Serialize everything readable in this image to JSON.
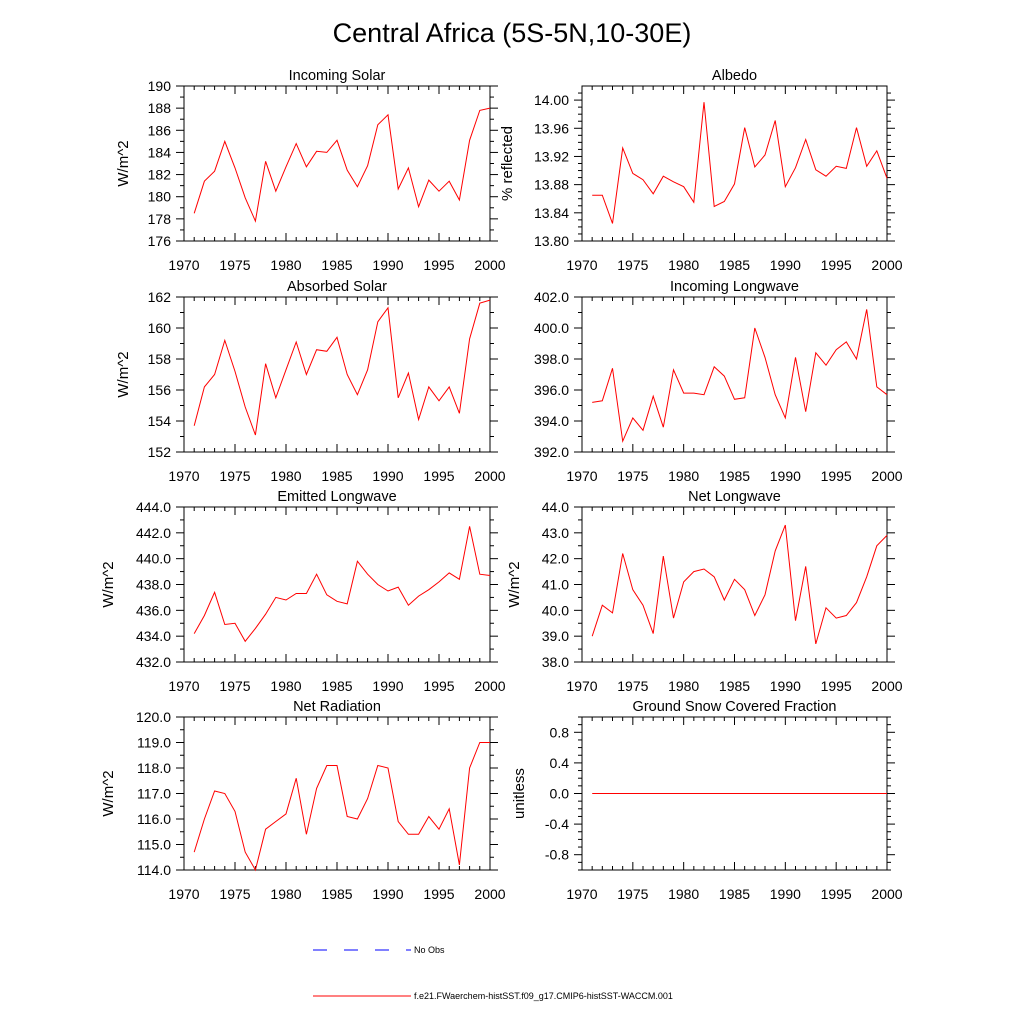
{
  "title": "Central Africa (5S-5N,10-30E)",
  "colors": {
    "model_line": "#ff0000",
    "obs_line": "#0000ff",
    "axis": "#000000"
  },
  "legend": {
    "obs_label": "No Obs",
    "model_label": "f.e21.FWaerchem-histSST.f09_g17.CMIP6-histSST-WACCM.001"
  },
  "chart_data": [
    {
      "type": "line",
      "title": "Incoming Solar",
      "ylabel": "W/m^2",
      "xlim": [
        1970,
        2000
      ],
      "ylim": [
        176,
        190
      ],
      "xticks": [
        1970,
        1975,
        1980,
        1985,
        1990,
        1995,
        2000
      ],
      "yticks": [
        176,
        178,
        180,
        182,
        184,
        186,
        188,
        190
      ],
      "ytick_labels": [
        "176",
        "178",
        "180",
        "182",
        "184",
        "186",
        "188",
        "190"
      ],
      "yminor": [
        177,
        179,
        181,
        183,
        185,
        187,
        189
      ],
      "x": [
        1971,
        1972,
        1973,
        1974,
        1975,
        1976,
        1977,
        1978,
        1979,
        1980,
        1981,
        1982,
        1983,
        1984,
        1985,
        1986,
        1987,
        1988,
        1989,
        1990,
        1991,
        1992,
        1993,
        1994,
        1995,
        1996,
        1997,
        1998,
        1999,
        2000
      ],
      "values": [
        178.5,
        181.4,
        182.3,
        185.0,
        182.6,
        179.9,
        177.8,
        183.2,
        180.5,
        182.7,
        184.8,
        182.7,
        184.1,
        184.0,
        185.1,
        182.4,
        180.9,
        182.8,
        186.5,
        187.4,
        180.7,
        182.6,
        179.1,
        181.5,
        180.5,
        181.4,
        179.7,
        185.1,
        187.8,
        188.0
      ]
    },
    {
      "type": "line",
      "title": "Albedo",
      "ylabel": "% reflected",
      "xlim": [
        1970,
        2000
      ],
      "ylim": [
        13.8,
        14.02
      ],
      "xticks": [
        1970,
        1975,
        1980,
        1985,
        1990,
        1995,
        2000
      ],
      "yticks": [
        13.8,
        13.84,
        13.88,
        13.92,
        13.96,
        14.0
      ],
      "ytick_labels": [
        "13.80",
        "13.84",
        "13.88",
        "13.92",
        "13.96",
        "14.00"
      ],
      "yminor": [
        13.81,
        13.82,
        13.83,
        13.85,
        13.86,
        13.87,
        13.89,
        13.9,
        13.91,
        13.93,
        13.94,
        13.95,
        13.97,
        13.98,
        13.99,
        14.01
      ],
      "x": [
        1971,
        1972,
        1973,
        1974,
        1975,
        1976,
        1977,
        1978,
        1979,
        1980,
        1981,
        1982,
        1983,
        1984,
        1985,
        1986,
        1987,
        1988,
        1989,
        1990,
        1991,
        1992,
        1993,
        1994,
        1995,
        1996,
        1997,
        1998,
        1999,
        2000
      ],
      "values": [
        13.865,
        13.865,
        13.825,
        13.932,
        13.896,
        13.887,
        13.867,
        13.892,
        13.884,
        13.877,
        13.855,
        13.997,
        13.849,
        13.856,
        13.881,
        13.961,
        13.905,
        13.922,
        13.971,
        13.877,
        13.904,
        13.944,
        13.901,
        13.892,
        13.906,
        13.903,
        13.961,
        13.906,
        13.928,
        13.889
      ]
    },
    {
      "type": "line",
      "title": "Absorbed Solar",
      "ylabel": "W/m^2",
      "xlim": [
        1970,
        2000
      ],
      "ylim": [
        152,
        162
      ],
      "xticks": [
        1970,
        1975,
        1980,
        1985,
        1990,
        1995,
        2000
      ],
      "yticks": [
        152,
        154,
        156,
        158,
        160,
        162
      ],
      "ytick_labels": [
        "152",
        "154",
        "156",
        "158",
        "160",
        "162"
      ],
      "yminor": [
        153,
        155,
        157,
        159,
        161
      ],
      "x": [
        1971,
        1972,
        1973,
        1974,
        1975,
        1976,
        1977,
        1978,
        1979,
        1980,
        1981,
        1982,
        1983,
        1984,
        1985,
        1986,
        1987,
        1988,
        1989,
        1990,
        1991,
        1992,
        1993,
        1994,
        1995,
        1996,
        1997,
        1998,
        1999,
        2000
      ],
      "values": [
        153.7,
        156.2,
        157.0,
        159.2,
        157.2,
        154.9,
        153.1,
        157.7,
        155.5,
        157.3,
        159.1,
        157.0,
        158.6,
        158.5,
        159.4,
        157.0,
        155.7,
        157.3,
        160.4,
        161.3,
        155.5,
        157.1,
        154.1,
        156.2,
        155.3,
        156.2,
        154.5,
        159.3,
        161.6,
        161.8
      ]
    },
    {
      "type": "line",
      "title": "Incoming Longwave",
      "ylabel": "",
      "xlim": [
        1970,
        2000
      ],
      "ylim": [
        392,
        402
      ],
      "xticks": [
        1970,
        1975,
        1980,
        1985,
        1990,
        1995,
        2000
      ],
      "yticks": [
        392,
        394,
        396,
        398,
        400,
        402
      ],
      "ytick_labels": [
        "392.0",
        "394.0",
        "396.0",
        "398.0",
        "400.0",
        "402.0"
      ],
      "yminor": [
        393,
        395,
        397,
        399,
        401
      ],
      "x": [
        1971,
        1972,
        1973,
        1974,
        1975,
        1976,
        1977,
        1978,
        1979,
        1980,
        1981,
        1982,
        1983,
        1984,
        1985,
        1986,
        1987,
        1988,
        1989,
        1990,
        1991,
        1992,
        1993,
        1994,
        1995,
        1996,
        1997,
        1998,
        1999,
        2000
      ],
      "values": [
        395.2,
        395.3,
        397.4,
        392.7,
        394.2,
        393.4,
        395.6,
        393.6,
        397.3,
        395.8,
        395.8,
        395.7,
        397.5,
        396.9,
        395.4,
        395.5,
        400.0,
        398.1,
        395.7,
        394.2,
        398.1,
        394.6,
        398.4,
        397.6,
        398.6,
        399.1,
        398.0,
        401.2,
        396.2,
        395.7
      ]
    },
    {
      "type": "line",
      "title": "Emitted Longwave",
      "ylabel": "W/m^2",
      "xlim": [
        1970,
        2000
      ],
      "ylim": [
        432,
        444
      ],
      "xticks": [
        1970,
        1975,
        1980,
        1985,
        1990,
        1995,
        2000
      ],
      "yticks": [
        432,
        434,
        436,
        438,
        440,
        442,
        444
      ],
      "ytick_labels": [
        "432.0",
        "434.0",
        "436.0",
        "438.0",
        "440.0",
        "442.0",
        "444.0"
      ],
      "yminor": [
        433,
        435,
        437,
        439,
        441,
        443
      ],
      "x": [
        1971,
        1972,
        1973,
        1974,
        1975,
        1976,
        1977,
        1978,
        1979,
        1980,
        1981,
        1982,
        1983,
        1984,
        1985,
        1986,
        1987,
        1988,
        1989,
        1990,
        1991,
        1992,
        1993,
        1994,
        1995,
        1996,
        1997,
        1998,
        1999,
        2000
      ],
      "values": [
        434.2,
        435.6,
        437.4,
        434.9,
        435.0,
        433.6,
        434.6,
        435.7,
        437.0,
        436.8,
        437.3,
        437.3,
        438.8,
        437.2,
        436.7,
        436.5,
        439.8,
        438.8,
        438.0,
        437.5,
        437.8,
        436.4,
        437.1,
        437.6,
        438.2,
        438.9,
        438.4,
        442.5,
        438.8,
        438.7
      ]
    },
    {
      "type": "line",
      "title": "Net Longwave",
      "ylabel": "W/m^2",
      "xlim": [
        1970,
        2000
      ],
      "ylim": [
        38,
        44
      ],
      "xticks": [
        1970,
        1975,
        1980,
        1985,
        1990,
        1995,
        2000
      ],
      "yticks": [
        38,
        39,
        40,
        41,
        42,
        43,
        44
      ],
      "ytick_labels": [
        "38.0",
        "39.0",
        "40.0",
        "41.0",
        "42.0",
        "43.0",
        "44.0"
      ],
      "yminor": [
        38.5,
        39.5,
        40.5,
        41.5,
        42.5,
        43.5
      ],
      "x": [
        1971,
        1972,
        1973,
        1974,
        1975,
        1976,
        1977,
        1978,
        1979,
        1980,
        1981,
        1982,
        1983,
        1984,
        1985,
        1986,
        1987,
        1988,
        1989,
        1990,
        1991,
        1992,
        1993,
        1994,
        1995,
        1996,
        1997,
        1998,
        1999,
        2000
      ],
      "values": [
        39.0,
        40.2,
        39.9,
        42.2,
        40.8,
        40.2,
        39.1,
        42.1,
        39.7,
        41.1,
        41.5,
        41.6,
        41.3,
        40.4,
        41.2,
        40.8,
        39.8,
        40.6,
        42.3,
        43.3,
        39.6,
        41.7,
        38.7,
        40.1,
        39.7,
        39.8,
        40.3,
        41.3,
        42.5,
        42.9
      ]
    },
    {
      "type": "line",
      "title": "Net Radiation",
      "ylabel": "W/m^2",
      "xlim": [
        1970,
        2000
      ],
      "ylim": [
        114,
        120
      ],
      "xticks": [
        1970,
        1975,
        1980,
        1985,
        1990,
        1995,
        2000
      ],
      "yticks": [
        114,
        115,
        116,
        117,
        118,
        119,
        120
      ],
      "ytick_labels": [
        "114.0",
        "115.0",
        "116.0",
        "117.0",
        "118.0",
        "119.0",
        "120.0"
      ],
      "yminor": [
        114.5,
        115.5,
        116.5,
        117.5,
        118.5,
        119.5
      ],
      "x": [
        1971,
        1972,
        1973,
        1974,
        1975,
        1976,
        1977,
        1978,
        1979,
        1980,
        1981,
        1982,
        1983,
        1984,
        1985,
        1986,
        1987,
        1988,
        1989,
        1990,
        1991,
        1992,
        1993,
        1994,
        1995,
        1996,
        1997,
        1998,
        1999,
        2000
      ],
      "values": [
        114.7,
        116.0,
        117.1,
        117.0,
        116.3,
        114.7,
        114.0,
        115.6,
        115.9,
        116.2,
        117.6,
        115.4,
        117.2,
        118.1,
        118.1,
        116.1,
        116.0,
        116.8,
        118.1,
        118.0,
        115.9,
        115.4,
        115.4,
        116.1,
        115.6,
        116.4,
        114.2,
        118.0,
        119.0,
        119.0
      ]
    },
    {
      "type": "line",
      "title": "Ground Snow Covered Fraction",
      "ylabel": "unitless",
      "xlim": [
        1970,
        2000
      ],
      "ylim": [
        -1.0,
        1.0
      ],
      "xticks": [
        1970,
        1975,
        1980,
        1985,
        1990,
        1995,
        2000
      ],
      "yticks": [
        -0.8,
        -0.4,
        0.0,
        0.4,
        0.8
      ],
      "ytick_labels": [
        "-0.8",
        "-0.4",
        "0.0",
        "0.4",
        "0.8"
      ],
      "yminor": [
        -1.0,
        -0.9,
        -0.7,
        -0.6,
        -0.5,
        -0.3,
        -0.2,
        -0.1,
        0.1,
        0.2,
        0.3,
        0.5,
        0.6,
        0.7,
        0.9,
        1.0
      ],
      "x": [
        1971,
        1972,
        1973,
        1974,
        1975,
        1976,
        1977,
        1978,
        1979,
        1980,
        1981,
        1982,
        1983,
        1984,
        1985,
        1986,
        1987,
        1988,
        1989,
        1990,
        1991,
        1992,
        1993,
        1994,
        1995,
        1996,
        1997,
        1998,
        1999,
        2000
      ],
      "values": [
        0,
        0,
        0,
        0,
        0,
        0,
        0,
        0,
        0,
        0,
        0,
        0,
        0,
        0,
        0,
        0,
        0,
        0,
        0,
        0,
        0,
        0,
        0,
        0,
        0,
        0,
        0,
        0,
        0,
        0
      ]
    }
  ]
}
